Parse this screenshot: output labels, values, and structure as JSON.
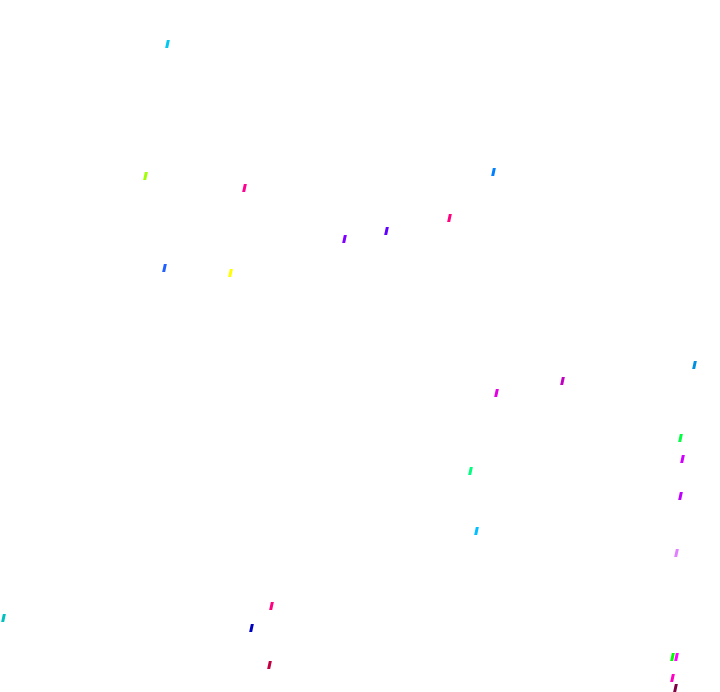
{
  "marks": {
    "colors": [
      "#00c8f0",
      "#a0ff00",
      "#ff0090",
      "#0080ff",
      "#ff0080",
      "#6000ff",
      "#8000ff",
      "#2060ff",
      "#ffff00",
      "#0090e0",
      "#c000c0",
      "#e000e0",
      "#00ff40",
      "#d000ff",
      "#00ff80",
      "#c000ff",
      "#00c0ff",
      "#e080ff",
      "#ff0080",
      "#00c0c0",
      "#0000c0",
      "#c00040",
      "#00ff00",
      "#ff00ff",
      "#ff00c0",
      "#800040"
    ]
  }
}
